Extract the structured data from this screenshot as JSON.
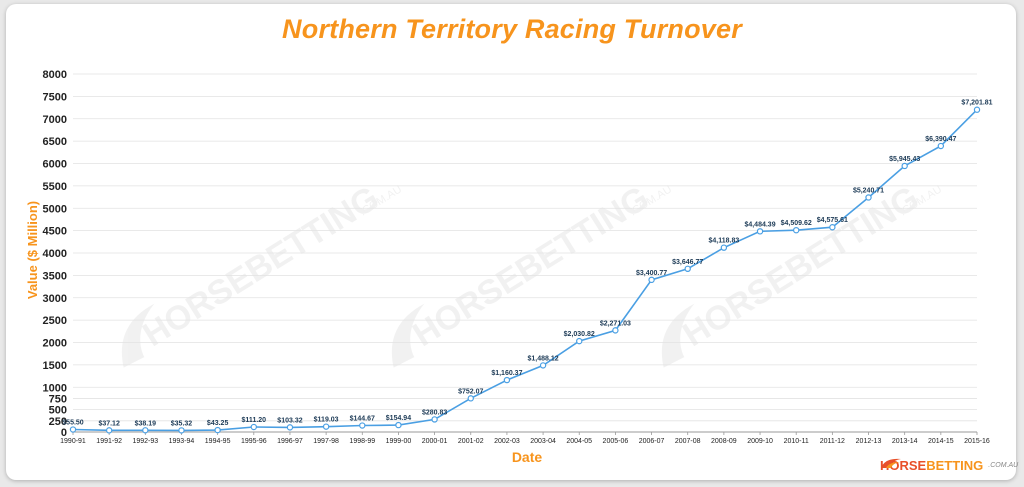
{
  "chart_data": {
    "type": "line",
    "title": "Northern Territory Racing Turnover",
    "xlabel": "Date",
    "ylabel": "Value ($ Million)",
    "ylim": [
      0,
      8000
    ],
    "yticks": [
      0,
      250,
      500,
      750,
      1000,
      1500,
      2000,
      2500,
      3000,
      3500,
      4000,
      4500,
      5000,
      5500,
      6000,
      6500,
      7000,
      7500,
      8000
    ],
    "ytick_labels": [
      "0",
      "250",
      "500",
      "750",
      "1000",
      "1500",
      "2000",
      "2500",
      "3000",
      "3500",
      "4000",
      "4500",
      "5000",
      "5500",
      "6000",
      "6500",
      "7000",
      "7500",
      "8000"
    ],
    "grid": true,
    "categories": [
      "1990-91",
      "1991-92",
      "1992-93",
      "1993-94",
      "1994-95",
      "1995-96",
      "1996-97",
      "1997-98",
      "1998-99",
      "1999-00",
      "2000-01",
      "2001-02",
      "2002-03",
      "2003-04",
      "2004-05",
      "2005-06",
      "2006-07",
      "2007-08",
      "2008-09",
      "2009-10",
      "2010-11",
      "2011-12",
      "2012-13",
      "2013-14",
      "2014-15",
      "2015-16"
    ],
    "values": [
      55.5,
      37.12,
      38.19,
      35.32,
      43.25,
      111.2,
      103.32,
      119.03,
      144.67,
      154.94,
      280.83,
      752.07,
      1160.37,
      1488.12,
      2030.82,
      2271.03,
      3400.77,
      3646.77,
      4118.83,
      4484.39,
      4509.62,
      4575.61,
      5240.71,
      5945.43,
      6390.47,
      7201.81
    ],
    "data_labels": [
      "$55.50",
      "$37.12",
      "$38.19",
      "$35.32",
      "$43.25",
      "$111.20",
      "$103.32",
      "$119.03",
      "$144.67",
      "$154.94",
      "$280.83",
      "$752.07",
      "$1,160.37",
      "$1,488.12",
      "$2,030.82",
      "$2,271.03",
      "$3,400.77",
      "$3,646.77",
      "$4,118.83",
      "$4,484.39",
      "$4,509.62",
      "$4,575.61",
      "$5,240.71",
      "$5,945.43",
      "$6,390.47",
      "$7,201.81"
    ],
    "colors": {
      "line": "#4a9fe3",
      "title": "#f7941d",
      "axis_title": "#f7941d",
      "label": "#1c3a56"
    }
  },
  "watermark": {
    "text": "HORSEBETTING",
    "domain": ".COM.AU"
  },
  "brand": {
    "horse": "HORSE",
    "betting": "BETTING",
    "domain": ".COM.AU"
  }
}
